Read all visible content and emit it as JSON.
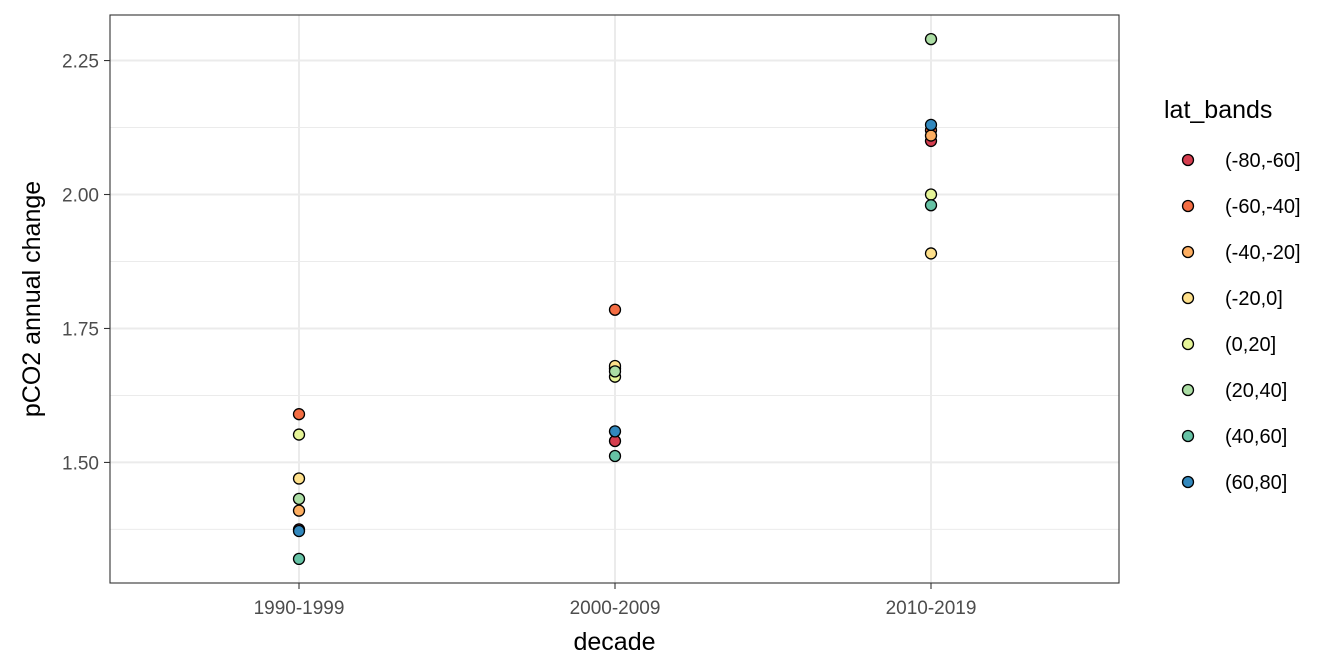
{
  "chart_data": {
    "type": "scatter",
    "title": "",
    "xlabel": "decade",
    "ylabel": "pCO2 annual change",
    "categories": [
      "1990-1999",
      "2000-2009",
      "2010-2019"
    ],
    "ylim": [
      1.275,
      2.335
    ],
    "y_ticks": [
      1.5,
      1.75,
      2.0,
      2.25
    ],
    "y_tick_labels": [
      "1.50",
      "1.75",
      "2.00",
      "2.25"
    ],
    "grid": true,
    "legend": {
      "title": "lat_bands",
      "position": "right"
    },
    "series": [
      {
        "name": "(-80,-60]",
        "color": "#d53e4f",
        "values": [
          1.375,
          1.54,
          2.1
        ]
      },
      {
        "name": "(-60,-40]",
        "color": "#f46d43",
        "values": [
          1.59,
          1.785,
          2.12
        ]
      },
      {
        "name": "(-40,-20]",
        "color": "#fdae61",
        "values": [
          1.41,
          1.675,
          2.11
        ]
      },
      {
        "name": "(-20,0]",
        "color": "#fee08b",
        "values": [
          1.47,
          1.68,
          1.89
        ]
      },
      {
        "name": "(0,20]",
        "color": "#e6f598",
        "values": [
          1.552,
          1.66,
          2.0
        ]
      },
      {
        "name": "(20,40]",
        "color": "#abdda4",
        "values": [
          1.432,
          1.67,
          2.29
        ]
      },
      {
        "name": "(40,60]",
        "color": "#66c2a5",
        "values": [
          1.32,
          1.512,
          1.98
        ]
      },
      {
        "name": "(60,80]",
        "color": "#3288bd",
        "values": [
          1.372,
          1.558,
          2.13
        ]
      }
    ]
  }
}
